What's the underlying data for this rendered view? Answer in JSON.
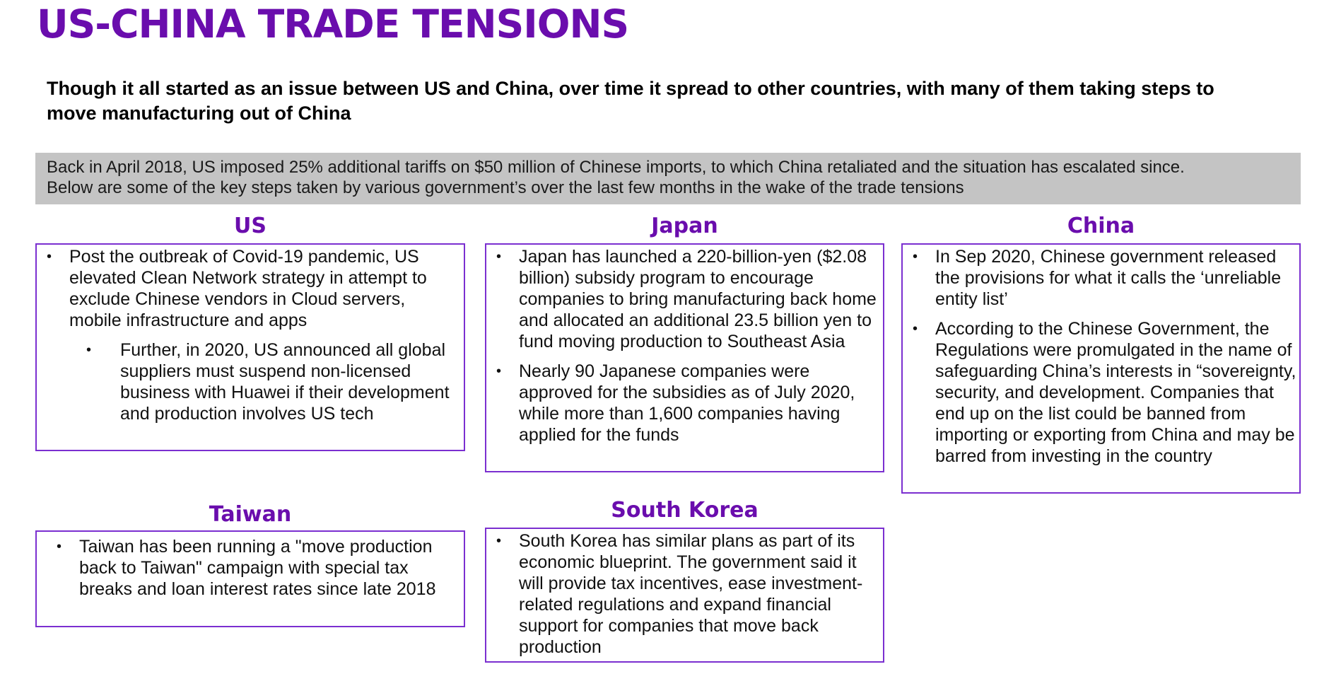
{
  "title": "US-CHINA TRADE TENSIONS",
  "subtitle": "Though it all started as an issue between US and China, over time it spread to other countries, with many of them taking steps to move manufacturing out of China",
  "intro": {
    "line1": "Back in April 2018, US imposed 25% additional tariffs on $50 million of Chinese imports, to which China retaliated and the situation has escalated since.",
    "line2": "Below are some of the key steps taken by various government’s over the last few months in the wake of the trade tensions"
  },
  "colors": {
    "accent": "#6a0dad",
    "box_border": "#7b2fd0",
    "intro_bg": "#c4c4c4"
  },
  "bullet_symbol": "•",
  "sections": {
    "us": {
      "heading": "US",
      "bullets": [
        "Post the outbreak of Covid-19 pandemic, US elevated Clean Network strategy in attempt to exclude Chinese vendors in Cloud servers, mobile infrastructure and apps"
      ],
      "sub_bullets": [
        "Further, in 2020, US announced all global suppliers must suspend non-licensed business with Huawei if their development and production involves US tech"
      ]
    },
    "japan": {
      "heading": "Japan",
      "bullets": [
        "Japan has launched a 220-billion-yen ($2.08 billion) subsidy program to encourage companies to bring manufacturing back home and allocated an additional 23.5 billion yen to fund moving production to Southeast Asia",
        "Nearly 90 Japanese companies were approved for the subsidies as of July 2020, while more than 1,600 companies having applied for the funds"
      ]
    },
    "china": {
      "heading": "China",
      "bullets": [
        "In Sep 2020, Chinese government released the provisions for what it calls the ‘unreliable entity list’",
        "According to the Chinese Government, the Regulations were promulgated in the name of safeguarding China’s interests in “sovereignty, security, and development. Companies that end up on the list could be banned from importing or exporting from China and may be barred from investing in the country"
      ]
    },
    "taiwan": {
      "heading": "Taiwan",
      "bullets": [
        "Taiwan has been running a \"move production back to Taiwan\" campaign with special tax breaks and loan interest rates since late 2018"
      ]
    },
    "south_korea": {
      "heading": "South Korea",
      "bullets": [
        "South Korea has similar plans as part of its economic blueprint. The government said it will provide tax incentives, ease investment-related regulations and expand financial support for companies that move back production"
      ]
    }
  }
}
